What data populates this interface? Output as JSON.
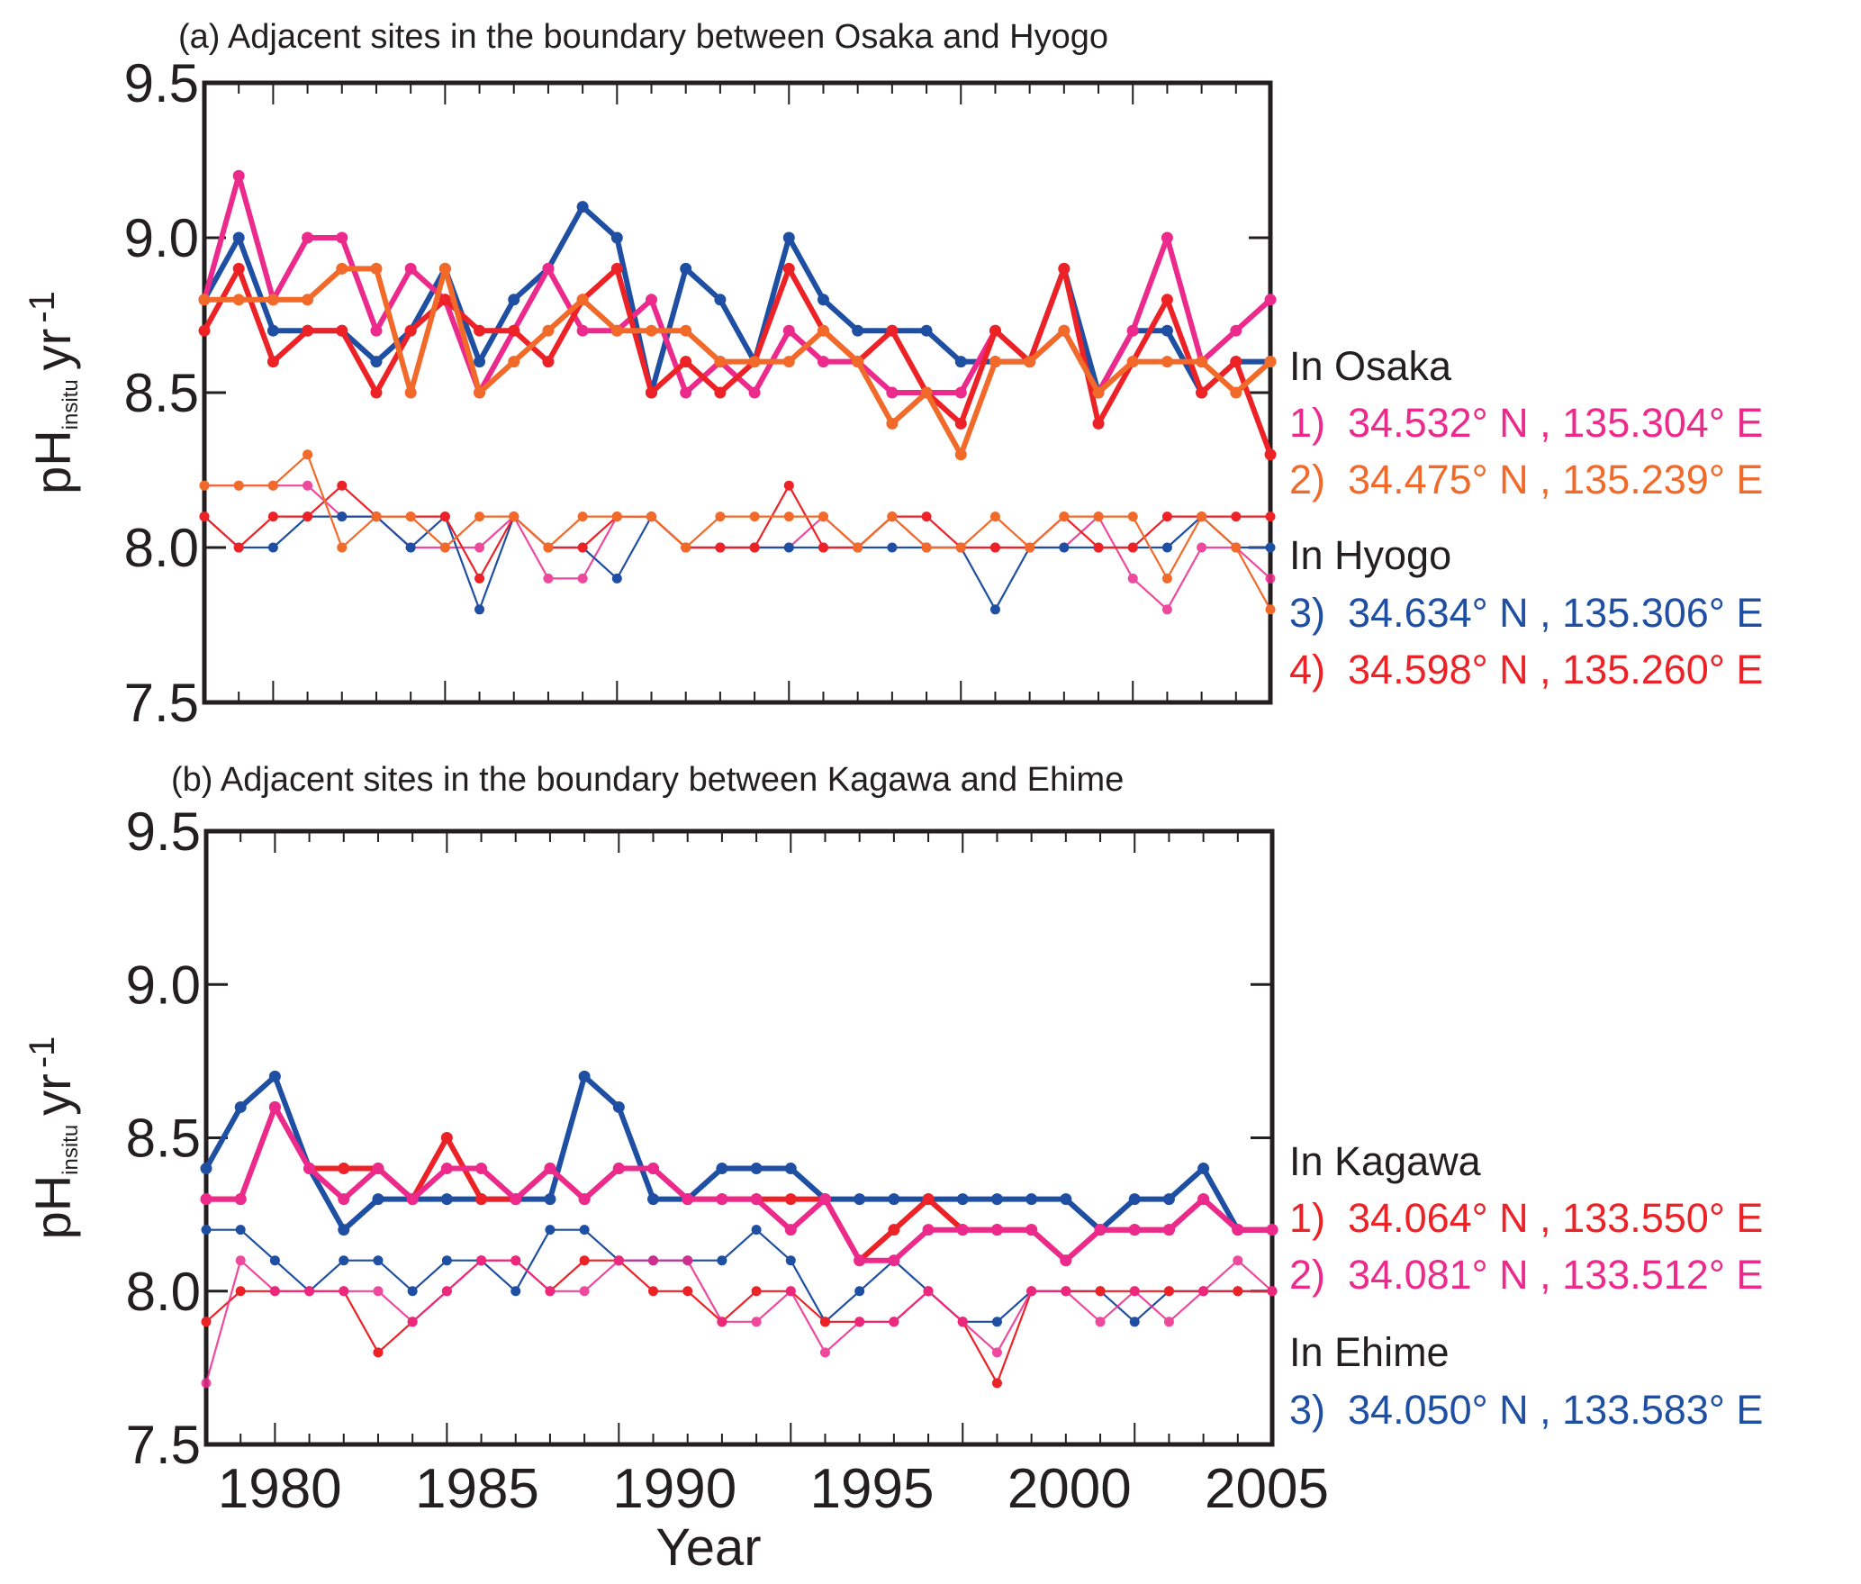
{
  "colors": {
    "pink": "#ec2a8c",
    "orange": "#f26a2a",
    "blue": "#1f4fa3",
    "red": "#ec2227",
    "axis": "#231f20"
  },
  "chart_data": [
    {
      "type": "line",
      "title": "(a) Adjacent sites in the boundary between Osaka and Hyogo",
      "xlabel": "",
      "ylabel": "pH",
      "ylabel_sub": "insitu",
      "ylabel_unit": "yr",
      "ylabel_sup": "-1",
      "ylim": [
        7.5,
        9.5
      ],
      "yticks": [
        "9.5",
        "9.0",
        "8.5",
        "8.0",
        "7.5"
      ],
      "xlim": [
        1978,
        2009
      ],
      "xtick_labels": [
        "1980",
        "1985",
        "1990",
        "1995",
        "2000",
        "2005"
      ],
      "grid": false,
      "legend_placement": "right",
      "legend": [
        {
          "group": "In Osaka",
          "items": [
            {
              "label": "1)  34.532° N , 135.304° E",
              "color": "pink"
            },
            {
              "label": "2)  34.475° N , 135.239° E",
              "color": "orange"
            }
          ]
        },
        {
          "group": "In Hyogo",
          "items": [
            {
              "label": "3)  34.634° N , 135.306° E",
              "color": "blue"
            },
            {
              "label": "4)  34.598° N , 135.260° E",
              "color": "red"
            }
          ]
        }
      ],
      "x": [
        1978,
        1979,
        1980,
        1981,
        1982,
        1983,
        1984,
        1985,
        1986,
        1987,
        1988,
        1989,
        1990,
        1991,
        1992,
        1993,
        1994,
        1995,
        1996,
        1997,
        1998,
        1999,
        2000,
        2001,
        2002,
        2003,
        2004,
        2005,
        2006,
        2007,
        2008,
        2009
      ],
      "series": [
        {
          "site": "1",
          "color": "pink",
          "style": "thin",
          "values": [
            8.2,
            8.2,
            8.2,
            8.2,
            8.1,
            8.1,
            8.0,
            8.0,
            8.0,
            8.1,
            7.9,
            7.9,
            8.1,
            8.1,
            8.0,
            8.0,
            8.0,
            8.0,
            8.1,
            8.0,
            8.1,
            8.0,
            8.0,
            8.0,
            8.0,
            8.0,
            8.1,
            7.9,
            7.8,
            8.0,
            8.0,
            7.9
          ]
        },
        {
          "site": "3",
          "color": "blue",
          "style": "thin",
          "values": [
            8.1,
            8.0,
            8.0,
            8.1,
            8.1,
            8.1,
            8.0,
            8.1,
            7.8,
            8.1,
            8.0,
            8.0,
            7.9,
            8.1,
            8.0,
            8.0,
            8.0,
            8.0,
            8.0,
            8.0,
            8.0,
            8.0,
            8.0,
            7.8,
            8.0,
            8.0,
            8.0,
            8.0,
            8.0,
            8.1,
            8.0,
            8.0
          ]
        },
        {
          "site": "4",
          "color": "red",
          "style": "thin",
          "values": [
            8.1,
            8.0,
            8.1,
            8.1,
            8.2,
            8.1,
            8.1,
            8.1,
            7.9,
            8.1,
            8.0,
            8.0,
            8.1,
            8.1,
            8.0,
            8.0,
            8.0,
            8.2,
            8.0,
            8.0,
            8.1,
            8.1,
            8.0,
            8.0,
            8.0,
            8.1,
            8.0,
            8.0,
            8.1,
            8.1,
            8.1,
            8.1
          ]
        },
        {
          "site": "2",
          "color": "orange",
          "style": "thin",
          "values": [
            8.2,
            8.2,
            8.2,
            8.3,
            8.0,
            8.1,
            8.1,
            8.0,
            8.1,
            8.1,
            8.0,
            8.1,
            8.1,
            8.1,
            8.0,
            8.1,
            8.1,
            8.1,
            8.1,
            8.0,
            8.1,
            8.0,
            8.0,
            8.1,
            8.0,
            8.1,
            8.1,
            8.1,
            7.9,
            8.1,
            8.0,
            7.8
          ]
        },
        {
          "site": "3",
          "color": "blue",
          "style": "thick",
          "values": [
            8.8,
            9.0,
            8.7,
            8.7,
            8.7,
            8.6,
            8.7,
            8.9,
            8.6,
            8.8,
            8.9,
            9.1,
            9.0,
            8.5,
            8.9,
            8.8,
            8.6,
            9.0,
            8.8,
            8.7,
            8.7,
            8.7,
            8.6,
            8.6,
            8.6,
            8.9,
            8.5,
            8.7,
            8.7,
            8.5,
            8.6,
            8.6
          ]
        },
        {
          "site": "1",
          "color": "pink",
          "style": "thick",
          "values": [
            8.8,
            9.2,
            8.8,
            9.0,
            9.0,
            8.7,
            8.9,
            8.8,
            8.5,
            8.7,
            8.9,
            8.7,
            8.7,
            8.8,
            8.5,
            8.6,
            8.5,
            8.7,
            8.6,
            8.6,
            8.5,
            8.5,
            8.5,
            8.7,
            8.6,
            8.7,
            8.5,
            8.7,
            9.0,
            8.6,
            8.7,
            8.8
          ]
        },
        {
          "site": "4",
          "color": "red",
          "style": "thick",
          "values": [
            8.7,
            8.9,
            8.6,
            8.7,
            8.7,
            8.5,
            8.7,
            8.8,
            8.7,
            8.7,
            8.6,
            8.8,
            8.9,
            8.5,
            8.6,
            8.5,
            8.6,
            8.9,
            8.7,
            8.6,
            8.7,
            8.5,
            8.4,
            8.7,
            8.6,
            8.9,
            8.4,
            8.6,
            8.8,
            8.5,
            8.6,
            8.3
          ]
        },
        {
          "site": "2",
          "color": "orange",
          "style": "thick",
          "values": [
            8.8,
            8.8,
            8.8,
            8.8,
            8.9,
            8.9,
            8.5,
            8.9,
            8.5,
            8.6,
            8.7,
            8.8,
            8.7,
            8.7,
            8.7,
            8.6,
            8.6,
            8.6,
            8.7,
            8.6,
            8.4,
            8.5,
            8.3,
            8.6,
            8.6,
            8.7,
            8.5,
            8.6,
            8.6,
            8.6,
            8.5,
            8.6
          ]
        }
      ]
    },
    {
      "type": "line",
      "title": "(b) Adjacent sites in the boundary between Kagawa and Ehime",
      "xlabel": "Year",
      "ylabel": "pH",
      "ylabel_sub": "insitu",
      "ylabel_unit": "yr",
      "ylabel_sup": "-1",
      "ylim": [
        7.5,
        9.5
      ],
      "yticks": [
        "9.5",
        "9.0",
        "8.5",
        "8.0",
        "7.5"
      ],
      "xlim": [
        1978,
        2009
      ],
      "xtick_labels": [
        "1980",
        "1985",
        "1990",
        "1995",
        "2000",
        "2005"
      ],
      "grid": false,
      "legend_placement": "right",
      "legend": [
        {
          "group": "In Kagawa",
          "items": [
            {
              "label": "1)  34.064° N , 133.550° E",
              "color": "red"
            },
            {
              "label": "2)  34.081° N , 133.512° E",
              "color": "pink"
            }
          ]
        },
        {
          "group": "In Ehime",
          "items": [
            {
              "label": "3)  34.050° N , 133.583° E",
              "color": "blue"
            }
          ]
        }
      ],
      "x": [
        1978,
        1979,
        1980,
        1981,
        1982,
        1983,
        1984,
        1985,
        1986,
        1987,
        1988,
        1989,
        1990,
        1991,
        1992,
        1993,
        1994,
        1995,
        1996,
        1997,
        1998,
        1999,
        2000,
        2001,
        2002,
        2003,
        2004,
        2005,
        2006,
        2007,
        2008,
        2009
      ],
      "series": [
        {
          "site": "3",
          "color": "blue",
          "style": "thin",
          "values": [
            8.2,
            8.2,
            8.1,
            8.0,
            8.1,
            8.1,
            8.0,
            8.1,
            8.1,
            8.0,
            8.2,
            8.2,
            8.1,
            8.1,
            8.1,
            8.1,
            8.2,
            8.1,
            7.9,
            8.0,
            8.1,
            8.0,
            7.9,
            7.9,
            8.0,
            8.0,
            8.0,
            7.9,
            8.0,
            8.0,
            8.0,
            8.0
          ]
        },
        {
          "site": "1",
          "color": "red",
          "style": "thin",
          "values": [
            7.9,
            8.0,
            8.0,
            8.0,
            8.0,
            7.8,
            7.9,
            8.0,
            8.1,
            8.1,
            8.0,
            8.1,
            8.1,
            8.0,
            8.0,
            7.9,
            8.0,
            8.0,
            7.9,
            7.9,
            7.9,
            8.0,
            7.9,
            7.7,
            8.0,
            8.0,
            8.0,
            8.0,
            8.0,
            8.0,
            8.0,
            8.0
          ]
        },
        {
          "site": "2",
          "color": "pink",
          "style": "thin",
          "values": [
            7.7,
            8.1,
            8.0,
            8.0,
            8.0,
            8.0,
            7.9,
            8.0,
            8.1,
            8.1,
            8.0,
            8.0,
            8.1,
            8.1,
            8.1,
            7.9,
            7.9,
            8.0,
            7.8,
            7.9,
            7.9,
            8.0,
            7.9,
            7.8,
            8.0,
            8.0,
            7.9,
            8.0,
            7.9,
            8.0,
            8.1,
            8.0
          ]
        },
        {
          "site": "3",
          "color": "blue",
          "style": "thick",
          "values": [
            8.4,
            8.6,
            8.7,
            8.4,
            8.2,
            8.3,
            8.3,
            8.3,
            8.3,
            8.3,
            8.3,
            8.7,
            8.6,
            8.3,
            8.3,
            8.4,
            8.4,
            8.4,
            8.3,
            8.3,
            8.3,
            8.3,
            8.3,
            8.3,
            8.3,
            8.3,
            8.2,
            8.3,
            8.3,
            8.4,
            8.2,
            8.2
          ]
        },
        {
          "site": "1",
          "color": "red",
          "style": "thick",
          "values": [
            8.3,
            8.3,
            8.6,
            8.4,
            8.4,
            8.4,
            8.3,
            8.5,
            8.3,
            8.3,
            8.4,
            8.3,
            8.4,
            8.4,
            8.3,
            8.3,
            8.3,
            8.3,
            8.3,
            8.1,
            8.2,
            8.3,
            8.2,
            8.2,
            8.2,
            8.1,
            8.2,
            8.2,
            8.2,
            8.3,
            8.2,
            8.2
          ]
        },
        {
          "site": "2",
          "color": "pink",
          "style": "thick",
          "values": [
            8.3,
            8.3,
            8.6,
            8.4,
            8.3,
            8.4,
            8.3,
            8.4,
            8.4,
            8.3,
            8.4,
            8.3,
            8.4,
            8.4,
            8.3,
            8.3,
            8.3,
            8.2,
            8.3,
            8.1,
            8.1,
            8.2,
            8.2,
            8.2,
            8.2,
            8.1,
            8.2,
            8.2,
            8.2,
            8.3,
            8.2,
            8.2
          ]
        }
      ]
    }
  ]
}
